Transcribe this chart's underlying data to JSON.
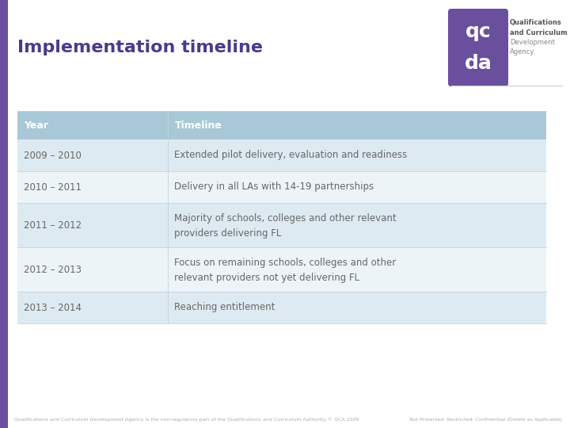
{
  "title": "Implementation timeline",
  "title_color": "#4a3b8c",
  "title_fontsize": 16,
  "bg_color": "#ffffff",
  "left_bar_color": "#6a4f9e",
  "header_bg": "#a8c8d8",
  "header_text_color": "#ffffff",
  "row_bg_odd": "#deeaf1",
  "row_bg_even": "#edf4f8",
  "cell_text_color": "#666666",
  "col1_header": "Year",
  "col2_header": "Timeline",
  "rows": [
    [
      "2009 – 2010",
      "Extended pilot delivery, evaluation and readiness"
    ],
    [
      "2010 – 2011",
      "Delivery in all LAs with 14-19 partnerships"
    ],
    [
      "2011 – 2012",
      "Majority of schools, colleges and other relevant\nproviders delivering FL"
    ],
    [
      "2012 – 2013",
      "Focus on remaining schools, colleges and other\nrelevant providers not yet delivering FL"
    ],
    [
      "2013 – 2014",
      "Reaching entitlement"
    ]
  ],
  "footer_left": "Qualifications and Curriculum Development Agency is the non-regulatory part of the Qualifications and Curriculum Authority © QCA 2009",
  "footer_right": "Not Protected- Restricted- Confidential (Delete as Applicable)",
  "footer_color": "#aaaaaa",
  "footer_fontsize": 4.5,
  "logo_color": "#6a4f9e"
}
